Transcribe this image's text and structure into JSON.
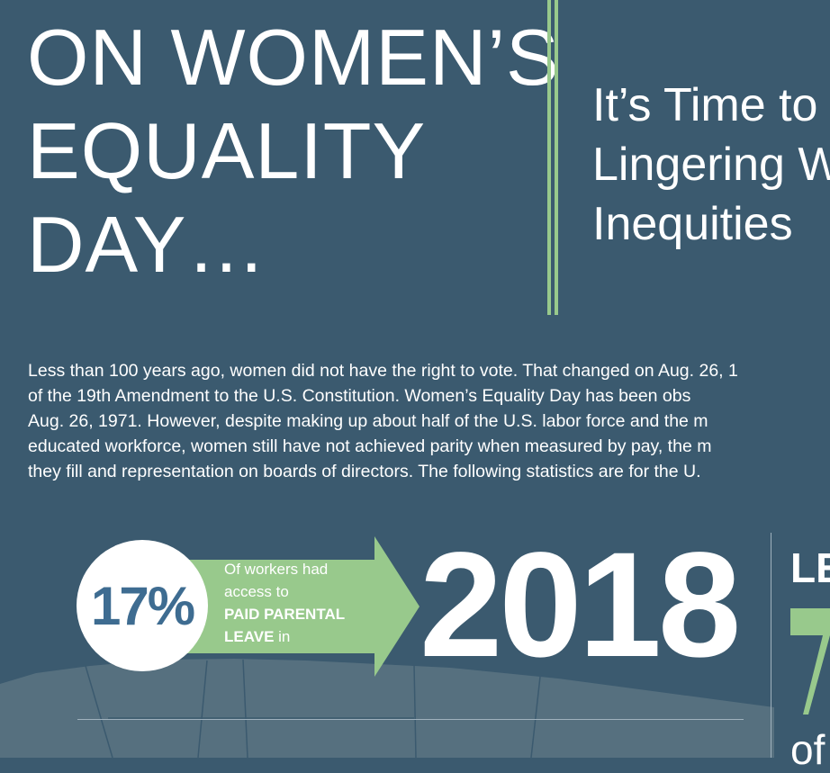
{
  "headline": {
    "lines": [
      "ON WOMEN’S",
      "EQUALITY",
      "DAY…"
    ]
  },
  "subtitle": {
    "lines": [
      "It’s Time to",
      "Lingering W",
      "Inequities"
    ]
  },
  "intro": {
    "lines": [
      "Less than 100 years ago, women did not have the right to vote. That changed on Aug. 26, 1",
      "of the 19th Amendment to the U.S. Constitution. Women’s Equality Day has been obs",
      "Aug. 26, 1971. However, despite making up about half of the U.S. labor force and the m",
      "educated workforce, women still have not achieved parity when measured by pay, the m",
      "they fill and representation on boards of directors. The following statistics are for the U."
    ]
  },
  "stat1": {
    "value": "17%",
    "text_lines": [
      "Of workers had",
      "access to"
    ],
    "emphasis_lines": [
      "PAID PARENTAL",
      "LEAVE"
    ],
    "tail": " in",
    "year": "2018"
  },
  "right_panel": {
    "heading": "LE",
    "footer": "of"
  },
  "colors": {
    "background": "#3b5a6f",
    "accent_green": "#98c98c",
    "circle_text": "#3e6c91",
    "map_fill": "#56707f"
  }
}
